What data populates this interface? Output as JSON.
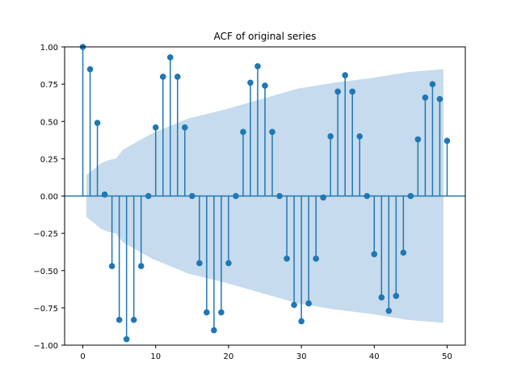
{
  "chart_data": {
    "type": "stem",
    "title": "ACF of original series",
    "xlabel": "",
    "ylabel": "",
    "xlim": [
      -2.5,
      52.5
    ],
    "ylim": [
      -1.0,
      1.0
    ],
    "x_ticks": [
      0,
      10,
      20,
      30,
      40,
      50
    ],
    "x_tick_labels": [
      "0",
      "10",
      "20",
      "30",
      "40",
      "50"
    ],
    "y_ticks": [
      -1.0,
      -0.75,
      -0.5,
      -0.25,
      0.0,
      0.25,
      0.5,
      0.75,
      1.0
    ],
    "y_tick_labels": [
      "−1.00",
      "−0.75",
      "−0.50",
      "−0.25",
      "0.00",
      "0.25",
      "0.50",
      "0.75",
      "1.00"
    ],
    "grid": false,
    "colors": {
      "stem": "#1f77b4",
      "confidence_band": "#c6dbed",
      "axes": "#000000"
    },
    "lags": [
      0,
      1,
      2,
      3,
      4,
      5,
      6,
      7,
      8,
      9,
      10,
      11,
      12,
      13,
      14,
      15,
      16,
      17,
      18,
      19,
      20,
      21,
      22,
      23,
      24,
      25,
      26,
      27,
      28,
      29,
      30,
      31,
      32,
      33,
      34,
      35,
      36,
      37,
      38,
      39,
      40,
      41,
      42,
      43,
      44,
      45,
      46,
      47,
      48,
      49,
      50
    ],
    "acf": [
      1.0,
      0.85,
      0.49,
      0.01,
      -0.47,
      -0.83,
      -0.96,
      -0.83,
      -0.47,
      0.0,
      0.46,
      0.8,
      0.93,
      0.8,
      0.46,
      0.0,
      -0.45,
      -0.78,
      -0.9,
      -0.78,
      -0.45,
      0.0,
      0.43,
      0.76,
      0.87,
      0.74,
      0.43,
      0.0,
      -0.42,
      -0.73,
      -0.84,
      -0.72,
      -0.42,
      -0.01,
      0.4,
      0.7,
      0.81,
      0.7,
      0.4,
      0.0,
      -0.39,
      -0.68,
      -0.77,
      -0.67,
      -0.38,
      0.0,
      0.38,
      0.66,
      0.75,
      0.65,
      0.37
    ],
    "confidence_band": {
      "x": [
        1,
        2,
        3,
        4,
        5,
        6,
        10,
        15,
        20,
        25,
        30,
        35,
        40,
        45,
        50
      ],
      "upper": [
        0.14,
        0.18,
        0.22,
        0.24,
        0.25,
        0.31,
        0.42,
        0.52,
        0.58,
        0.65,
        0.72,
        0.76,
        0.79,
        0.83,
        0.85
      ],
      "lower": [
        -0.14,
        -0.18,
        -0.22,
        -0.24,
        -0.25,
        -0.31,
        -0.42,
        -0.52,
        -0.58,
        -0.65,
        -0.72,
        -0.76,
        -0.79,
        -0.83,
        -0.85
      ]
    }
  }
}
